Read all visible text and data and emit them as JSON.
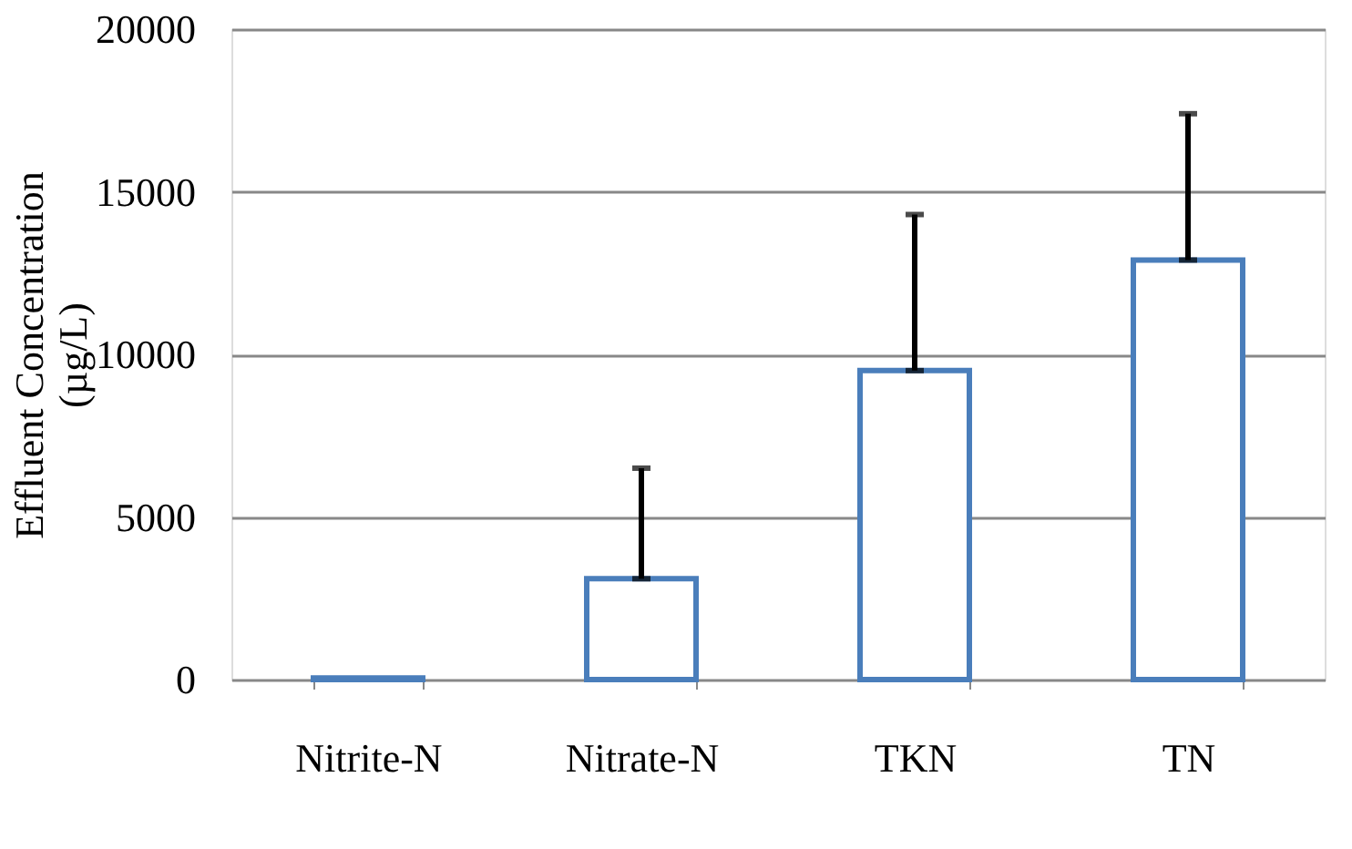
{
  "chart_data": {
    "type": "bar",
    "ylabel": "Effluent Concentration\n(µg/L)",
    "categories": [
      "Nitrite-N",
      "Nitrate-N",
      "TKN",
      "TN"
    ],
    "values": [
      50,
      3100,
      9500,
      12900
    ],
    "errors": [
      null,
      [
        3100,
        6500
      ],
      [
        9500,
        14300
      ],
      [
        12900,
        17400
      ]
    ],
    "color": "#4a7ebb",
    "ylim": [
      0,
      20000
    ],
    "yticks": [
      0,
      5000,
      10000,
      15000,
      20000
    ],
    "grid": "y"
  }
}
